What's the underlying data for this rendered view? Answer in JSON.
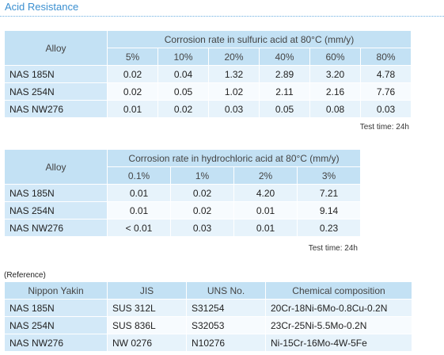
{
  "title": "Acid Resistance",
  "table1": {
    "alloy_header": "Alloy",
    "group_header": "Corrosion rate in sulfuric acid at 80°C (mm/y)",
    "columns": [
      "5%",
      "10%",
      "20%",
      "40%",
      "60%",
      "80%"
    ],
    "rows": [
      [
        "NAS 185N",
        "0.02",
        "0.04",
        "1.32",
        "2.89",
        "3.20",
        "4.78"
      ],
      [
        "NAS 254N",
        "0.02",
        "0.05",
        "1.02",
        "2.11",
        "2.16",
        "7.76"
      ],
      [
        "NAS NW276",
        "0.01",
        "0.02",
        "0.03",
        "0.05",
        "0.08",
        "0.03"
      ]
    ],
    "note": "Test time: 24h"
  },
  "table2": {
    "alloy_header": "Alloy",
    "group_header": "Corrosion rate in hydrochloric acid at 80°C (mm/y)",
    "columns": [
      "0.1%",
      "1%",
      "2%",
      "3%"
    ],
    "rows": [
      [
        "NAS 185N",
        "0.01",
        "0.02",
        "4.20",
        "7.21"
      ],
      [
        "NAS 254N",
        "0.01",
        "0.02",
        "0.01",
        "9.14"
      ],
      [
        "NAS NW276",
        "< 0.01",
        "0.03",
        "0.01",
        "0.23"
      ]
    ],
    "note": "Test time: 24h"
  },
  "reference": {
    "label": "(Reference)",
    "header": [
      "Nippon Yakin",
      "JIS",
      "UNS No.",
      "Chemical composition"
    ],
    "rows": [
      [
        "NAS 185N",
        "SUS 312L",
        "S31254",
        "20Cr-18Ni-6Mo-0.8Cu-0.2N"
      ],
      [
        "NAS 254N",
        "SUS 836L",
        "S32053",
        "23Cr-25Ni-5.5Mo-0.2N"
      ],
      [
        "NAS NW276",
        "NW 0276",
        "N10276",
        "Ni-15Cr-16Mo-4W-5Fe"
      ]
    ]
  }
}
